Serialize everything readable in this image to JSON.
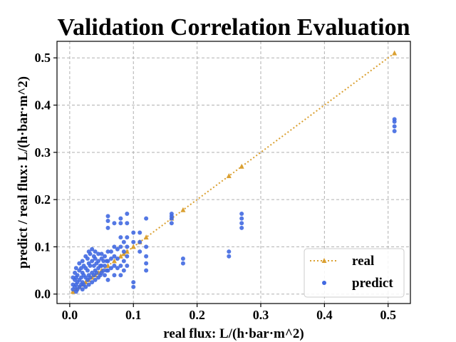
{
  "chart_data": {
    "type": "scatter",
    "title": "Validation Correlation Evaluation",
    "xlabel": "real flux: L/(h·bar·m^2)",
    "ylabel": "predict / real flux: L/(h·bar·m^2)",
    "xlim": [
      -0.02,
      0.535
    ],
    "ylim": [
      -0.02,
      0.535
    ],
    "x_ticks": [
      "0.0",
      "0.1",
      "0.2",
      "0.3",
      "0.4",
      "0.5"
    ],
    "y_ticks": [
      "0.0",
      "0.1",
      "0.2",
      "0.3",
      "0.4",
      "0.5"
    ],
    "grid": true,
    "legend_position": "lower-right",
    "colors": {
      "real": "#DAA031",
      "predict": "#4169E1"
    },
    "series": [
      {
        "name": "real",
        "style": "dotted line with triangle markers",
        "x": [
          0.005,
          0.01,
          0.015,
          0.02,
          0.025,
          0.03,
          0.035,
          0.04,
          0.045,
          0.05,
          0.06,
          0.07,
          0.08,
          0.085,
          0.09,
          0.1,
          0.11,
          0.12,
          0.16,
          0.178,
          0.25,
          0.27,
          0.51
        ],
        "y": [
          0.005,
          0.01,
          0.015,
          0.02,
          0.025,
          0.03,
          0.035,
          0.04,
          0.045,
          0.05,
          0.06,
          0.07,
          0.08,
          0.085,
          0.09,
          0.1,
          0.11,
          0.12,
          0.16,
          0.178,
          0.25,
          0.27,
          0.51
        ]
      },
      {
        "name": "predict",
        "style": "scatter dots",
        "x": [
          0.005,
          0.005,
          0.005,
          0.008,
          0.008,
          0.008,
          0.01,
          0.01,
          0.01,
          0.01,
          0.012,
          0.012,
          0.012,
          0.015,
          0.015,
          0.015,
          0.015,
          0.018,
          0.018,
          0.018,
          0.02,
          0.02,
          0.02,
          0.02,
          0.022,
          0.022,
          0.022,
          0.025,
          0.025,
          0.025,
          0.025,
          0.028,
          0.028,
          0.028,
          0.03,
          0.03,
          0.03,
          0.03,
          0.032,
          0.032,
          0.032,
          0.035,
          0.035,
          0.035,
          0.035,
          0.038,
          0.038,
          0.038,
          0.04,
          0.04,
          0.04,
          0.04,
          0.042,
          0.042,
          0.045,
          0.045,
          0.045,
          0.045,
          0.048,
          0.048,
          0.05,
          0.05,
          0.05,
          0.05,
          0.053,
          0.053,
          0.055,
          0.055,
          0.055,
          0.058,
          0.058,
          0.06,
          0.06,
          0.06,
          0.06,
          0.06,
          0.06,
          0.06,
          0.065,
          0.065,
          0.065,
          0.07,
          0.07,
          0.07,
          0.07,
          0.07,
          0.075,
          0.075,
          0.075,
          0.08,
          0.08,
          0.08,
          0.08,
          0.08,
          0.08,
          0.085,
          0.085,
          0.085,
          0.085,
          0.09,
          0.09,
          0.09,
          0.09,
          0.09,
          0.09,
          0.1,
          0.1,
          0.1,
          0.1,
          0.11,
          0.11,
          0.11,
          0.12,
          0.12,
          0.12,
          0.12,
          0.12,
          0.16,
          0.16,
          0.16,
          0.16,
          0.178,
          0.178,
          0.25,
          0.25,
          0.27,
          0.27,
          0.27,
          0.27,
          0.51,
          0.51,
          0.51,
          0.51
        ],
        "y": [
          0.01,
          0.02,
          0.035,
          0.015,
          0.03,
          0.045,
          0.005,
          0.02,
          0.035,
          0.055,
          0.01,
          0.025,
          0.04,
          0.015,
          0.03,
          0.05,
          0.065,
          0.02,
          0.035,
          0.055,
          0.01,
          0.025,
          0.045,
          0.07,
          0.02,
          0.04,
          0.06,
          0.015,
          0.035,
          0.055,
          0.08,
          0.03,
          0.05,
          0.075,
          0.02,
          0.04,
          0.065,
          0.09,
          0.035,
          0.06,
          0.085,
          0.025,
          0.045,
          0.07,
          0.095,
          0.04,
          0.06,
          0.08,
          0.03,
          0.05,
          0.075,
          0.09,
          0.045,
          0.065,
          0.035,
          0.055,
          0.07,
          0.085,
          0.04,
          0.06,
          0.045,
          0.06,
          0.075,
          0.085,
          0.05,
          0.07,
          0.04,
          0.06,
          0.08,
          0.05,
          0.07,
          0.03,
          0.05,
          0.07,
          0.09,
          0.14,
          0.155,
          0.165,
          0.055,
          0.075,
          0.09,
          0.04,
          0.06,
          0.08,
          0.1,
          0.15,
          0.055,
          0.075,
          0.095,
          0.04,
          0.06,
          0.1,
          0.12,
          0.15,
          0.16,
          0.05,
          0.07,
          0.09,
          0.11,
          0.06,
          0.08,
          0.1,
          0.12,
          0.15,
          0.17,
          0.015,
          0.025,
          0.11,
          0.13,
          0.09,
          0.11,
          0.13,
          0.05,
          0.065,
          0.08,
          0.1,
          0.16,
          0.15,
          0.16,
          0.165,
          0.17,
          0.065,
          0.075,
          0.08,
          0.09,
          0.14,
          0.15,
          0.16,
          0.17,
          0.345,
          0.355,
          0.365,
          0.37
        ]
      }
    ]
  }
}
